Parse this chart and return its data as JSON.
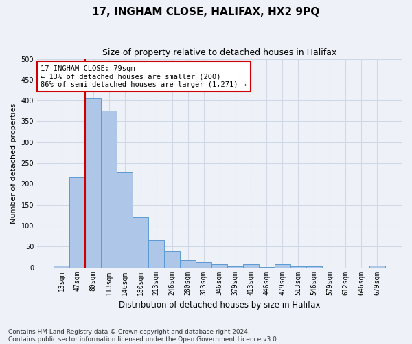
{
  "title": "17, INGHAM CLOSE, HALIFAX, HX2 9PQ",
  "subtitle": "Size of property relative to detached houses in Halifax",
  "xlabel": "Distribution of detached houses by size in Halifax",
  "ylabel": "Number of detached properties",
  "categories": [
    "13sqm",
    "47sqm",
    "80sqm",
    "113sqm",
    "146sqm",
    "180sqm",
    "213sqm",
    "246sqm",
    "280sqm",
    "313sqm",
    "346sqm",
    "379sqm",
    "413sqm",
    "446sqm",
    "479sqm",
    "513sqm",
    "546sqm",
    "579sqm",
    "612sqm",
    "646sqm",
    "679sqm"
  ],
  "values": [
    4,
    217,
    405,
    375,
    229,
    120,
    65,
    39,
    18,
    13,
    7,
    3,
    8,
    1,
    8,
    2,
    2,
    0,
    0,
    0,
    4
  ],
  "bar_color": "#aec6e8",
  "bar_edge_color": "#5a9bd4",
  "vline_x_index": 2,
  "vline_color": "#cc0000",
  "annotation_text": "17 INGHAM CLOSE: 79sqm\n← 13% of detached houses are smaller (200)\n86% of semi-detached houses are larger (1,271) →",
  "annotation_box_color": "#ffffff",
  "annotation_box_edge": "#cc0000",
  "grid_color": "#d0d8e8",
  "background_color": "#eef2f8",
  "ylim": [
    0,
    500
  ],
  "yticks": [
    0,
    50,
    100,
    150,
    200,
    250,
    300,
    350,
    400,
    450,
    500
  ],
  "title_fontsize": 11,
  "subtitle_fontsize": 9,
  "ylabel_fontsize": 8,
  "xlabel_fontsize": 8.5,
  "tick_fontsize": 7,
  "annotation_fontsize": 7.5,
  "footer_fontsize": 6.5,
  "footer": "Contains HM Land Registry data © Crown copyright and database right 2024.\nContains public sector information licensed under the Open Government Licence v3.0."
}
